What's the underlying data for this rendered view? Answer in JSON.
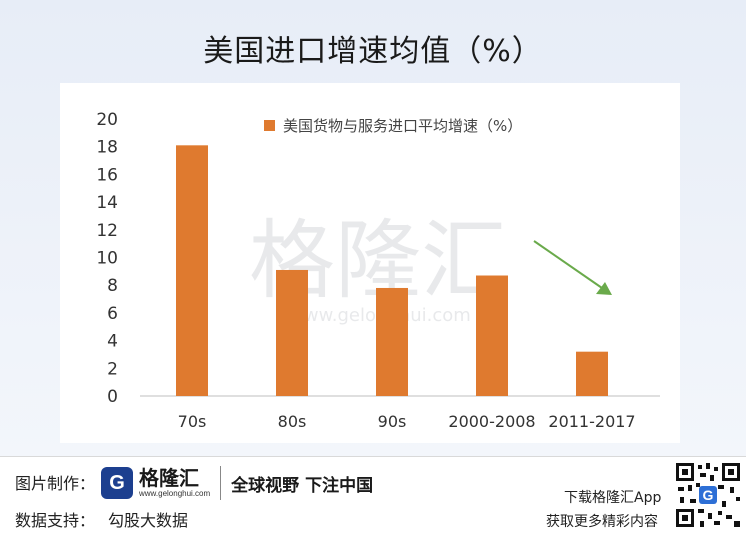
{
  "title": "美国进口增速均值（%）",
  "watermark": {
    "cn": "格隆汇",
    "url": "www.gelonghui.com"
  },
  "chart_data": {
    "type": "bar",
    "categories": [
      "70s",
      "80s",
      "90s",
      "2000-2008",
      "2011-2017"
    ],
    "series": [
      {
        "name": "美国货物与服务进口平均增速（%）",
        "values": [
          18.1,
          9.1,
          7.8,
          8.7,
          3.2
        ]
      }
    ],
    "ylim": [
      0,
      20
    ],
    "yticks": [
      0,
      2,
      4,
      6,
      8,
      10,
      12,
      14,
      16,
      18,
      20
    ],
    "ytick_labels": [
      "0",
      "2",
      "4",
      "6",
      "8",
      "10",
      "12",
      "14",
      "16",
      "18",
      "20"
    ],
    "legend_position": "top",
    "grid": false,
    "bar_color": "#df7a2f",
    "annotation": {
      "type": "arrow",
      "color": "#6aaa4b",
      "meaning": "downward trend"
    }
  },
  "footer": {
    "made_by_label": "图片制作：",
    "data_support_label": "数据支持：",
    "data_support_value": "勾股大数据",
    "brand_logo_letter": "G",
    "brand_name": "格隆汇",
    "brand_domain": "www.gelonghui.com",
    "slogan": "全球视野 下注中国",
    "download_text": "下载格隆汇App",
    "promo_text": "获取更多精彩内容",
    "qr_icon": "qr-code-icon"
  }
}
